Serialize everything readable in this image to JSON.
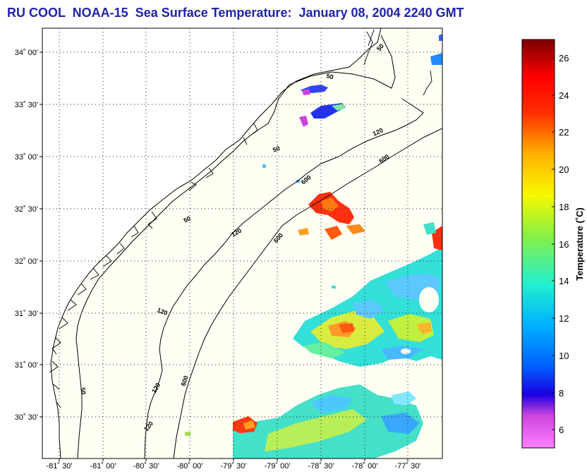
{
  "title": "RU COOL  NOAA-15  Sea Surface Temperature:  January 08, 2004 2240 GMT",
  "map": {
    "lat_ticks": [
      "34˚ 00'",
      "33˚ 30'",
      "33˚ 00'",
      "32˚ 30'",
      "32˚ 00'",
      "31˚ 30'",
      "31˚ 00'",
      "30˚ 30'"
    ],
    "lon_ticks": [
      "-81˚ 30'",
      "-81˚ 00'",
      "-80˚ 30'",
      "-80˚ 00'",
      "-79˚ 30'",
      "-79˚ 00'",
      "-78˚ 30'",
      "-78˚ 00'",
      "-77˚ 30'"
    ],
    "lat_values": [
      34.0,
      33.5,
      33.0,
      32.5,
      32.0,
      31.5,
      31.0,
      30.5
    ],
    "lon_values": [
      -81.5,
      -81.0,
      -80.5,
      -80.0,
      -79.5,
      -79.0,
      -78.5,
      -78.0,
      -77.5
    ],
    "lon_range": [
      -81.5,
      -77.2
    ],
    "lat_range": [
      30.12,
      34.2
    ],
    "grid": "dotted",
    "isobath_labels": [
      "50",
      "50",
      "50",
      "50",
      "50",
      "120",
      "120",
      "120",
      "120",
      "120",
      "600",
      "600",
      "600",
      "600"
    ],
    "land_color": "#ffffff",
    "water_background": "#fffff2",
    "coastline_color": "#000000"
  },
  "colorbar": {
    "label": "Temperature (˚C)",
    "ticks": [
      "26",
      "24",
      "22",
      "20",
      "18",
      "16",
      "14",
      "12",
      "10",
      "8",
      "6"
    ],
    "tick_values": [
      26,
      24,
      22,
      20,
      18,
      16,
      14,
      12,
      10,
      8,
      6
    ],
    "range": [
      5,
      27
    ],
    "colors": [
      "#ff66ee",
      "#9933cc",
      "#0000ff",
      "#0077ff",
      "#00ccff",
      "#33ffcc",
      "#99ff33",
      "#ffff00",
      "#ffaa00",
      "#ff4400",
      "#cc0000",
      "#660000"
    ]
  }
}
